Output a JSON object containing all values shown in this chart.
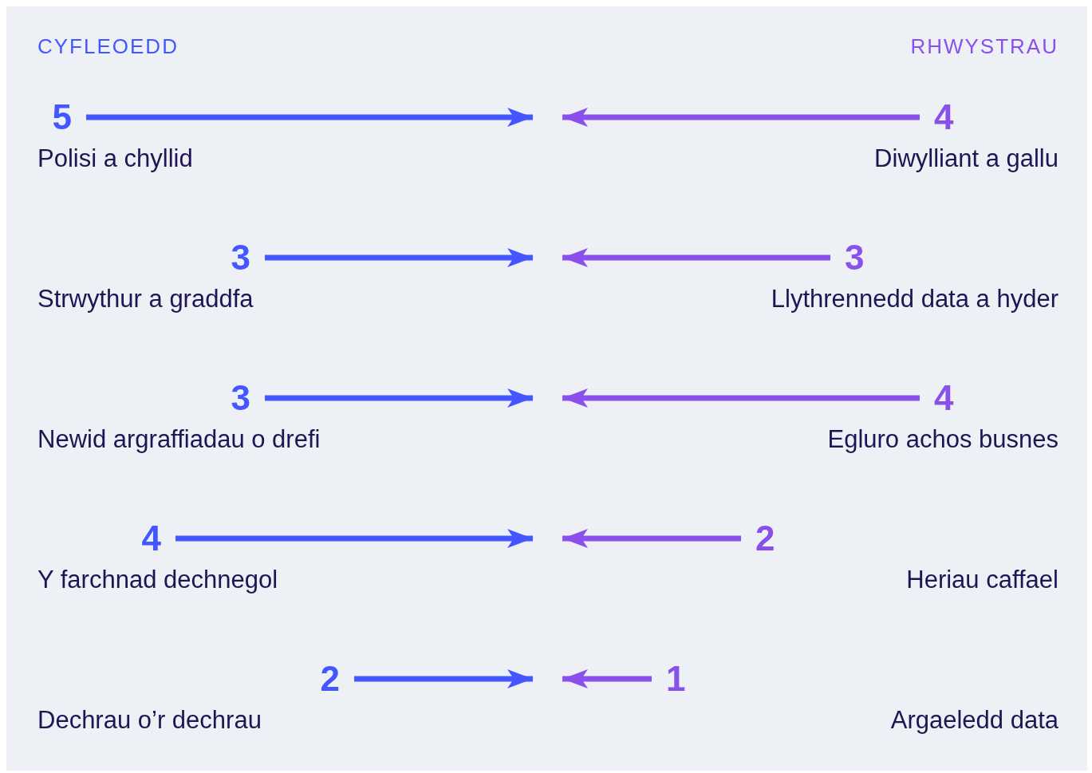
{
  "chart_data": [
    {
      "type": "bar",
      "orientation": "horizontal",
      "title": "CYFLEOEDD",
      "categories": [
        "Polisi a chyllid",
        "Strwythur a graddfa",
        "Newid argraffiadau o drefi",
        "Y farchnad dechnegol",
        "Dechrau o’r dechrau"
      ],
      "values": [
        5,
        3,
        3,
        4,
        2
      ],
      "color": "#4457ff",
      "data_labels": true,
      "tick_labels": false
    },
    {
      "type": "bar",
      "orientation": "horizontal",
      "title": "RHWYSTRAU",
      "categories": [
        "Diwylliant a gallu",
        "Llythrennedd data a hyder",
        "Egluro achos busnes",
        "Heriau caffael",
        "Argaeledd data"
      ],
      "values": [
        4,
        3,
        4,
        2,
        1
      ],
      "color": "#8a50ec",
      "data_labels": true,
      "tick_labels": false
    }
  ]
}
